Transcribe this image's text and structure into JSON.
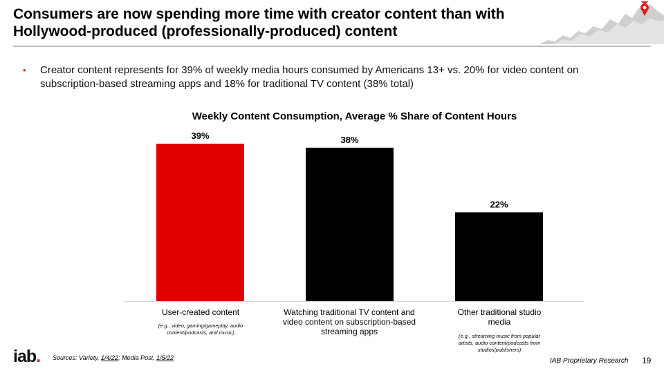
{
  "header": {
    "title_line1": "Consumers are now spending more time with creator content than with",
    "title_line2": "Hollywood-produced (professionally-produced) content"
  },
  "bullet": {
    "text": "Creator content represents for 39% of weekly media hours consumed by Americans 13+ vs. 20% for video content on subscription-based streaming apps and 18% for traditional TV content (38% total)"
  },
  "chart_data": {
    "type": "bar",
    "title": "Weekly Content Consumption, Average % Share of Content Hours",
    "categories": [
      "User-created content",
      "Watching traditional TV content and video content on subscription-based streaming apps",
      "Other traditional studio media"
    ],
    "category_notes": [
      "(e.g., video, gaming/gameplay, audio content/podcasts, and music)",
      "",
      "(e.g., streaming music from popular artists, audio content/podcasts from studios/publishers)"
    ],
    "values": [
      39,
      38,
      22
    ],
    "data_labels": [
      "39%",
      "38%",
      "22%"
    ],
    "colors": [
      "#e00000",
      "#000000",
      "#000000"
    ],
    "xlabel": "",
    "ylabel": "",
    "ylim": [
      0,
      39
    ],
    "grid": false
  },
  "footer": {
    "logo_text": "iab",
    "logo_dot": ".",
    "sources_prefix": "Sources: Variety, ",
    "source1_date": "1/4/22",
    "sources_mid": "; Media Post, ",
    "source2_date": "1/5/22",
    "research_label": "IAB Proprietary Research",
    "page_number": "19"
  },
  "colors": {
    "accent": "#e01e1e",
    "rule": "#bdbdbd"
  }
}
